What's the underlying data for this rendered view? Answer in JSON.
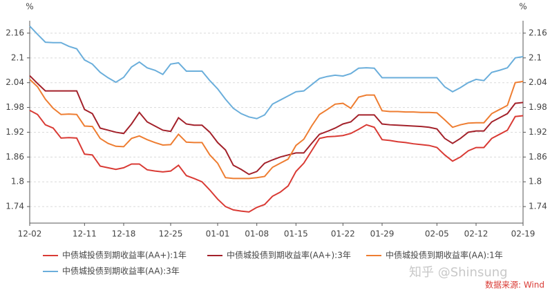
{
  "chart_data": {
    "type": "line",
    "y_unit": "%",
    "y2_unit": "%",
    "source": "数据来源: Wind",
    "watermark": "知乎 @Shinsung",
    "categories": [
      "12-02",
      null,
      null,
      null,
      null,
      null,
      null,
      "12-11",
      null,
      null,
      null,
      null,
      "12-18",
      null,
      null,
      null,
      null,
      null,
      "12-25",
      null,
      null,
      null,
      null,
      null,
      "01-01",
      null,
      null,
      null,
      null,
      "01-08",
      null,
      null,
      null,
      null,
      "01-15",
      null,
      null,
      null,
      null,
      null,
      "01-22",
      null,
      null,
      null,
      null,
      "01-29",
      null,
      null,
      null,
      null,
      null,
      null,
      "02-05",
      null,
      null,
      null,
      null,
      "02-12",
      null,
      null,
      null,
      null,
      null,
      "02-19"
    ],
    "series": [
      {
        "name": "中债城投债到期收益率(AA+):1年",
        "color": "#d93a34",
        "values": [
          1.973,
          1.963,
          1.938,
          1.93,
          1.906,
          1.907,
          1.906,
          1.867,
          1.865,
          1.838,
          1.834,
          1.83,
          1.834,
          1.843,
          1.843,
          1.829,
          1.826,
          1.824,
          1.826,
          1.84,
          1.815,
          1.808,
          1.8,
          1.78,
          1.758,
          1.74,
          1.732,
          1.729,
          1.727,
          1.738,
          1.745,
          1.765,
          1.775,
          1.79,
          1.825,
          1.845,
          1.875,
          1.905,
          1.909,
          1.91,
          1.912,
          1.917,
          1.927,
          1.938,
          1.932,
          1.902,
          1.9,
          1.897,
          1.895,
          1.892,
          1.89,
          1.888,
          1.883,
          1.865,
          1.85,
          1.86,
          1.875,
          1.883,
          1.883,
          1.905,
          1.915,
          1.925,
          1.958,
          1.96
        ]
      },
      {
        "name": "中债城投债到期收益率(AA+):3年",
        "color": "#a3212a",
        "values": [
          2.057,
          2.038,
          2.02,
          2.02,
          2.02,
          2.02,
          2.02,
          1.975,
          1.965,
          1.93,
          1.925,
          1.92,
          1.917,
          1.94,
          1.968,
          1.945,
          1.935,
          1.925,
          1.922,
          1.955,
          1.94,
          1.937,
          1.937,
          1.92,
          1.895,
          1.877,
          1.84,
          1.83,
          1.818,
          1.825,
          1.845,
          1.853,
          1.86,
          1.865,
          1.87,
          1.87,
          1.893,
          1.915,
          1.922,
          1.93,
          1.94,
          1.945,
          1.962,
          1.962,
          1.962,
          1.94,
          1.938,
          1.937,
          1.936,
          1.935,
          1.934,
          1.932,
          1.928,
          1.905,
          1.893,
          1.905,
          1.92,
          1.923,
          1.923,
          1.945,
          1.955,
          1.965,
          1.99,
          1.992
        ]
      },
      {
        "name": "中债城投债到期收益率(AA):1年",
        "color": "#ee7d31",
        "values": [
          2.048,
          2.03,
          2.0,
          1.978,
          1.963,
          1.964,
          1.963,
          1.935,
          1.934,
          1.905,
          1.893,
          1.886,
          1.885,
          1.905,
          1.911,
          1.902,
          1.895,
          1.889,
          1.89,
          1.915,
          1.896,
          1.895,
          1.895,
          1.865,
          1.845,
          1.81,
          1.808,
          1.808,
          1.808,
          1.81,
          1.813,
          1.835,
          1.845,
          1.855,
          1.888,
          1.903,
          1.935,
          1.963,
          1.975,
          1.988,
          1.99,
          1.978,
          2.005,
          2.01,
          2.01,
          1.972,
          1.97,
          1.97,
          1.969,
          1.969,
          1.968,
          1.968,
          1.967,
          1.95,
          1.932,
          1.938,
          1.942,
          1.943,
          1.943,
          1.965,
          1.975,
          1.985,
          2.04,
          2.043
        ]
      },
      {
        "name": "中债城投债到期收益率(AA):3年",
        "color": "#6aaedb",
        "values": [
          2.177,
          2.157,
          2.138,
          2.137,
          2.137,
          2.128,
          2.122,
          2.095,
          2.085,
          2.065,
          2.052,
          2.041,
          2.053,
          2.078,
          2.09,
          2.076,
          2.07,
          2.06,
          2.085,
          2.088,
          2.068,
          2.068,
          2.068,
          2.045,
          2.025,
          2.0,
          1.978,
          1.965,
          1.957,
          1.953,
          1.962,
          1.988,
          1.998,
          2.008,
          2.018,
          2.02,
          2.035,
          2.05,
          2.055,
          2.058,
          2.056,
          2.062,
          2.075,
          2.076,
          2.075,
          2.052,
          2.052,
          2.052,
          2.052,
          2.052,
          2.052,
          2.052,
          2.052,
          2.03,
          2.018,
          2.028,
          2.04,
          2.048,
          2.045,
          2.065,
          2.07,
          2.076,
          2.1,
          2.103
        ]
      }
    ],
    "ylim": [
      1.7,
      2.19
    ],
    "yticks": [
      1.74,
      1.8,
      1.86,
      1.92,
      1.98,
      2.04,
      2.1,
      2.16
    ],
    "y2lim": [
      1.7,
      2.19
    ],
    "y2ticks": [
      1.74,
      1.8,
      1.86,
      1.92,
      1.98,
      2.04,
      2.1,
      2.16
    ],
    "grid": true,
    "legend": "bottom-left"
  }
}
